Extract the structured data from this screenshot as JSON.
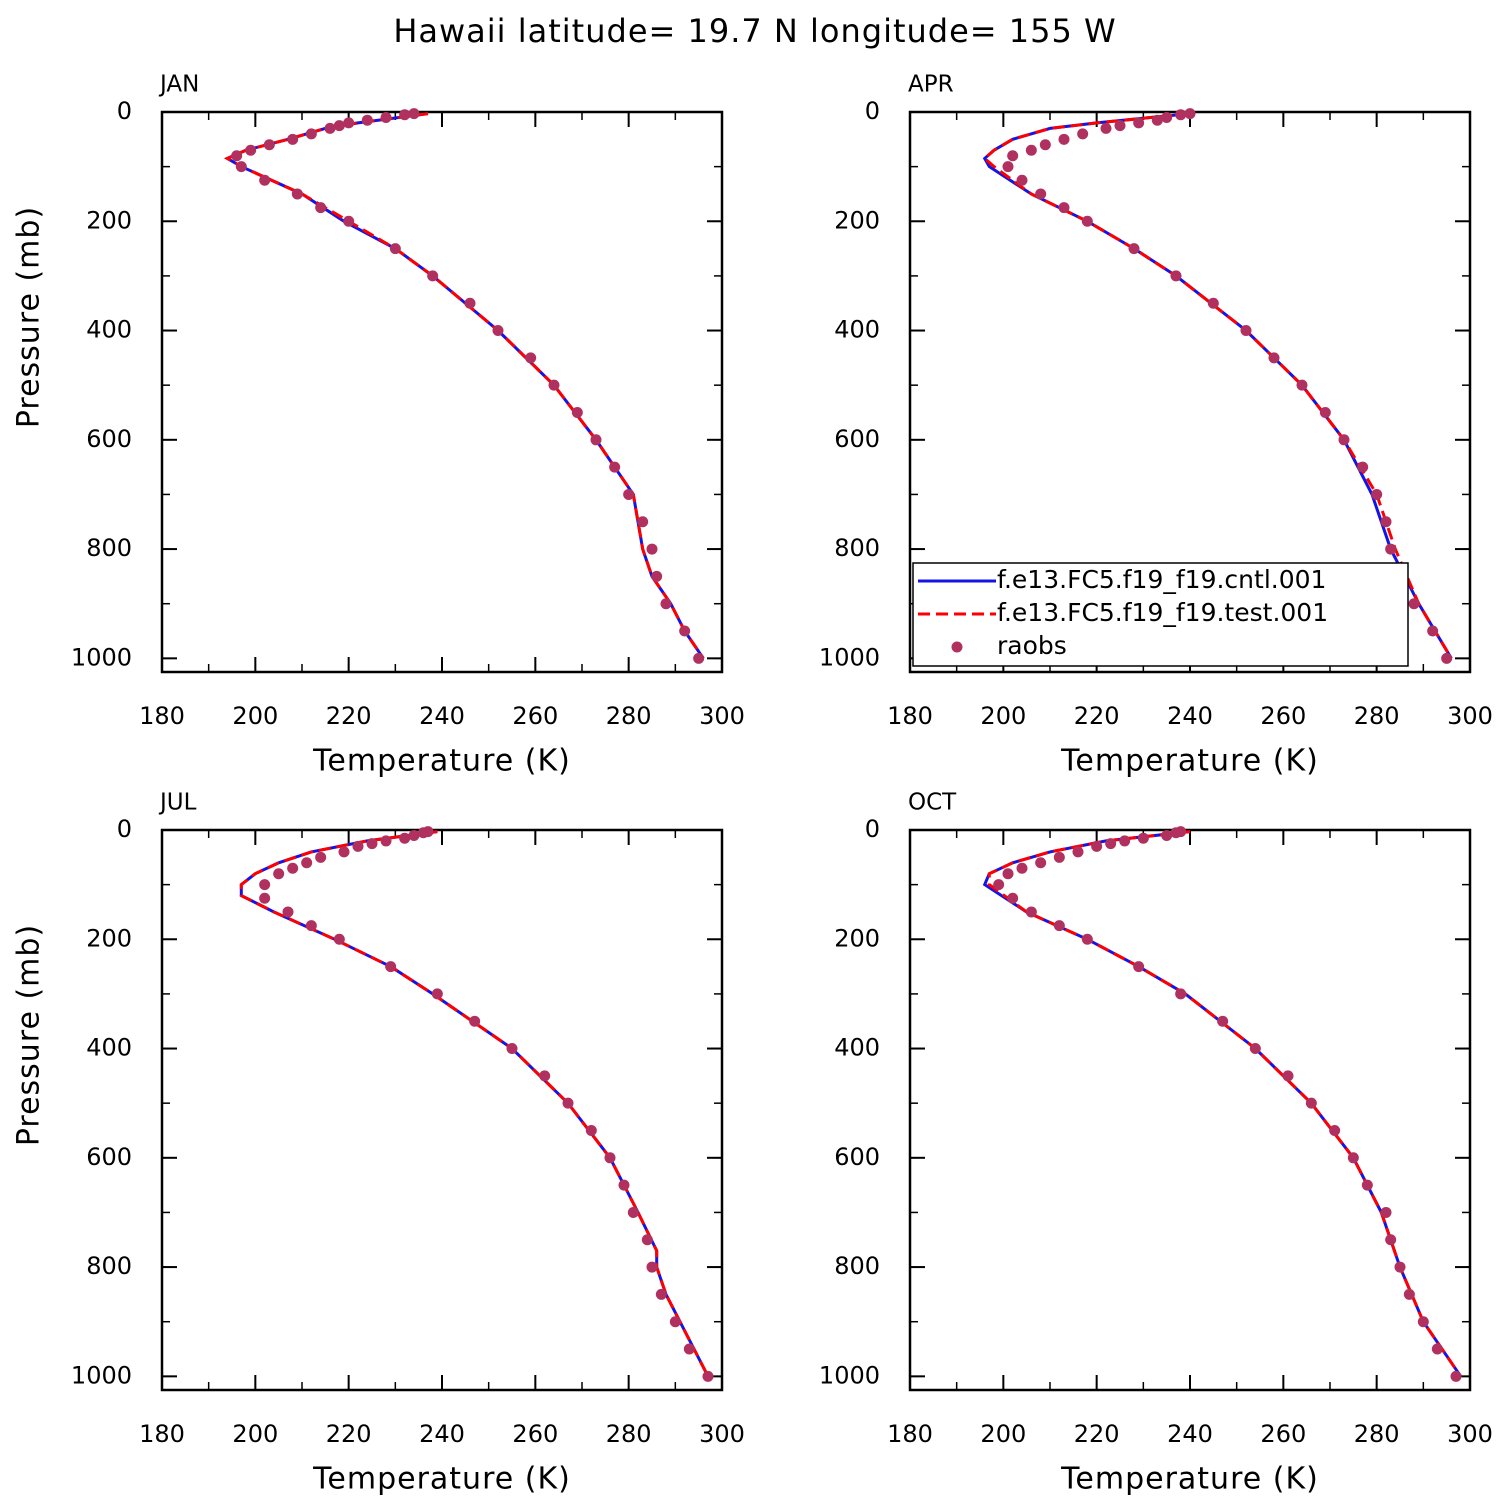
{
  "title": "Hawaii  latitude= 19.7 N longitude= 155 W",
  "chart_data": [
    {
      "type": "line",
      "title": "JAN",
      "xlabel": "Temperature (K)",
      "ylabel": "Pressure (mb)",
      "xlim": [
        180,
        300
      ],
      "ylim": [
        0,
        1025
      ],
      "y_reversed": true,
      "xticks": [
        180,
        200,
        220,
        240,
        260,
        280,
        300
      ],
      "yticks": [
        0,
        200,
        400,
        600,
        800,
        1000
      ],
      "series": [
        {
          "color": "#1414e6",
          "style": "solid",
          "x": [
            237,
            222,
            215,
            207,
            198,
            194,
            197,
            210,
            219,
            230,
            238,
            252,
            264,
            273,
            281,
            283,
            285,
            289,
            292,
            296
          ],
          "y": [
            3,
            20,
            30,
            50,
            70,
            85,
            100,
            150,
            200,
            250,
            300,
            400,
            500,
            600,
            700,
            800,
            850,
            900,
            950,
            1000
          ]
        },
        {
          "color": "#ff0000",
          "style": "dashed",
          "x": [
            237,
            222,
            215,
            207,
            198,
            194,
            197,
            210,
            220,
            230,
            238,
            252,
            264,
            273,
            281,
            283,
            285,
            289,
            292,
            296
          ],
          "y": [
            3,
            20,
            30,
            50,
            70,
            85,
            100,
            150,
            200,
            250,
            300,
            400,
            500,
            600,
            700,
            800,
            850,
            900,
            950,
            1000
          ]
        },
        {
          "color": "#b03060",
          "style": "markers",
          "x": [
            234,
            232,
            228,
            224,
            220,
            218,
            216,
            212,
            208,
            203,
            199,
            196,
            197,
            202,
            209,
            214,
            220,
            230,
            238,
            246,
            252,
            259,
            264,
            269,
            273,
            277,
            280,
            283,
            285,
            286,
            288,
            292,
            295
          ],
          "y": [
            3,
            5,
            10,
            15,
            20,
            25,
            30,
            40,
            50,
            60,
            70,
            80,
            100,
            125,
            150,
            175,
            200,
            250,
            300,
            350,
            400,
            450,
            500,
            550,
            600,
            650,
            700,
            750,
            800,
            850,
            900,
            950,
            1000
          ]
        }
      ]
    },
    {
      "type": "line",
      "title": "APR",
      "xlabel": "Temperature (K)",
      "xlim": [
        180,
        300
      ],
      "ylim": [
        0,
        1025
      ],
      "y_reversed": true,
      "xticks": [
        180,
        200,
        220,
        240,
        260,
        280,
        300
      ],
      "yticks": [
        0,
        200,
        400,
        600,
        800,
        1000
      ],
      "legend": "lower left",
      "series": [
        {
          "name": "f.e13.FC5.f19_f19.cntl.001",
          "color": "#1414e6",
          "style": "solid",
          "x": [
            240,
            220,
            210,
            202,
            198,
            196,
            197,
            206,
            218,
            228,
            237,
            252,
            264,
            273,
            279,
            283,
            289,
            296
          ],
          "y": [
            3,
            20,
            30,
            50,
            70,
            85,
            100,
            150,
            200,
            250,
            300,
            400,
            500,
            600,
            700,
            800,
            900,
            1000
          ]
        },
        {
          "name": "f.e13.FC5.f19_f19.test.001",
          "color": "#ff0000",
          "style": "dashed",
          "x": [
            240,
            220,
            210,
            202,
            198,
            196,
            198,
            206,
            218,
            228,
            237,
            252,
            264,
            273,
            280,
            284,
            289,
            296
          ],
          "y": [
            3,
            20,
            30,
            50,
            70,
            85,
            100,
            150,
            200,
            250,
            300,
            400,
            500,
            600,
            700,
            800,
            900,
            1000
          ]
        },
        {
          "name": "raobs",
          "color": "#b03060",
          "style": "markers",
          "x": [
            240,
            238,
            235,
            233,
            229,
            225,
            222,
            217,
            213,
            209,
            206,
            202,
            201,
            204,
            208,
            213,
            218,
            228,
            237,
            245,
            252,
            258,
            264,
            269,
            273,
            277,
            280,
            282,
            283,
            285,
            288,
            292,
            295
          ],
          "y": [
            3,
            5,
            10,
            15,
            20,
            25,
            30,
            40,
            50,
            60,
            70,
            80,
            100,
            125,
            150,
            175,
            200,
            250,
            300,
            350,
            400,
            450,
            500,
            550,
            600,
            650,
            700,
            750,
            800,
            850,
            900,
            950,
            1000
          ]
        }
      ]
    },
    {
      "type": "line",
      "title": "JUL",
      "xlabel": "Temperature (K)",
      "ylabel": "Pressure (mb)",
      "xlim": [
        180,
        300
      ],
      "ylim": [
        0,
        1025
      ],
      "y_reversed": true,
      "xticks": [
        180,
        200,
        220,
        240,
        260,
        280,
        300
      ],
      "yticks": [
        0,
        200,
        400,
        600,
        800,
        1000
      ],
      "series": [
        {
          "color": "#1414e6",
          "style": "solid",
          "x": [
            239,
            224,
            212,
            205,
            200,
            197,
            197,
            204,
            217,
            229,
            238,
            255,
            267,
            276,
            282,
            286,
            286,
            288,
            291,
            294,
            297
          ],
          "y": [
            3,
            20,
            40,
            60,
            80,
            100,
            120,
            150,
            200,
            250,
            300,
            400,
            500,
            600,
            700,
            770,
            800,
            850,
            900,
            950,
            1000
          ]
        },
        {
          "color": "#ff0000",
          "style": "dashed",
          "x": [
            239,
            224,
            212,
            205,
            200,
            197,
            197,
            204,
            217,
            229,
            238,
            255,
            267,
            276,
            282,
            286,
            286,
            288,
            291,
            294,
            297
          ],
          "y": [
            3,
            20,
            40,
            60,
            80,
            100,
            120,
            150,
            200,
            250,
            300,
            400,
            500,
            600,
            700,
            770,
            800,
            850,
            900,
            950,
            1000
          ]
        },
        {
          "color": "#b03060",
          "style": "markers",
          "x": [
            237,
            236,
            234,
            232,
            228,
            225,
            222,
            219,
            214,
            211,
            208,
            205,
            202,
            202,
            207,
            212,
            218,
            229,
            239,
            247,
            255,
            262,
            267,
            272,
            276,
            279,
            281,
            284,
            285,
            287,
            290,
            293,
            297
          ],
          "y": [
            3,
            5,
            10,
            15,
            20,
            25,
            30,
            40,
            50,
            60,
            70,
            80,
            100,
            125,
            150,
            175,
            200,
            250,
            300,
            350,
            400,
            450,
            500,
            550,
            600,
            650,
            700,
            750,
            800,
            850,
            900,
            950,
            1000
          ]
        }
      ]
    },
    {
      "type": "line",
      "title": "OCT",
      "xlabel": "Temperature (K)",
      "xlim": [
        180,
        300
      ],
      "ylim": [
        0,
        1025
      ],
      "y_reversed": true,
      "xticks": [
        180,
        200,
        220,
        240,
        260,
        280,
        300
      ],
      "yticks": [
        0,
        200,
        400,
        600,
        800,
        1000
      ],
      "series": [
        {
          "color": "#1414e6",
          "style": "solid",
          "x": [
            240,
            222,
            210,
            202,
            197,
            196,
            205,
            218,
            229,
            239,
            254,
            266,
            275,
            281,
            285,
            290,
            298
          ],
          "y": [
            3,
            20,
            40,
            60,
            80,
            100,
            150,
            200,
            250,
            300,
            400,
            500,
            600,
            700,
            800,
            900,
            1000
          ]
        },
        {
          "color": "#ff0000",
          "style": "dashed",
          "x": [
            240,
            222,
            210,
            202,
            197,
            197,
            205,
            218,
            229,
            239,
            254,
            266,
            275,
            281,
            285,
            290,
            298
          ],
          "y": [
            3,
            20,
            40,
            60,
            80,
            100,
            150,
            200,
            250,
            300,
            400,
            500,
            600,
            700,
            800,
            900,
            1000
          ]
        },
        {
          "color": "#b03060",
          "style": "markers",
          "x": [
            238,
            237,
            235,
            230,
            226,
            223,
            220,
            216,
            212,
            208,
            204,
            201,
            199,
            202,
            206,
            212,
            218,
            229,
            238,
            247,
            254,
            261,
            266,
            271,
            275,
            278,
            282,
            283,
            285,
            287,
            290,
            293,
            297
          ],
          "y": [
            3,
            5,
            10,
            15,
            20,
            25,
            30,
            40,
            50,
            60,
            70,
            80,
            100,
            125,
            150,
            175,
            200,
            250,
            300,
            350,
            400,
            450,
            500,
            550,
            600,
            650,
            700,
            750,
            800,
            850,
            900,
            950,
            1000
          ]
        }
      ]
    }
  ]
}
